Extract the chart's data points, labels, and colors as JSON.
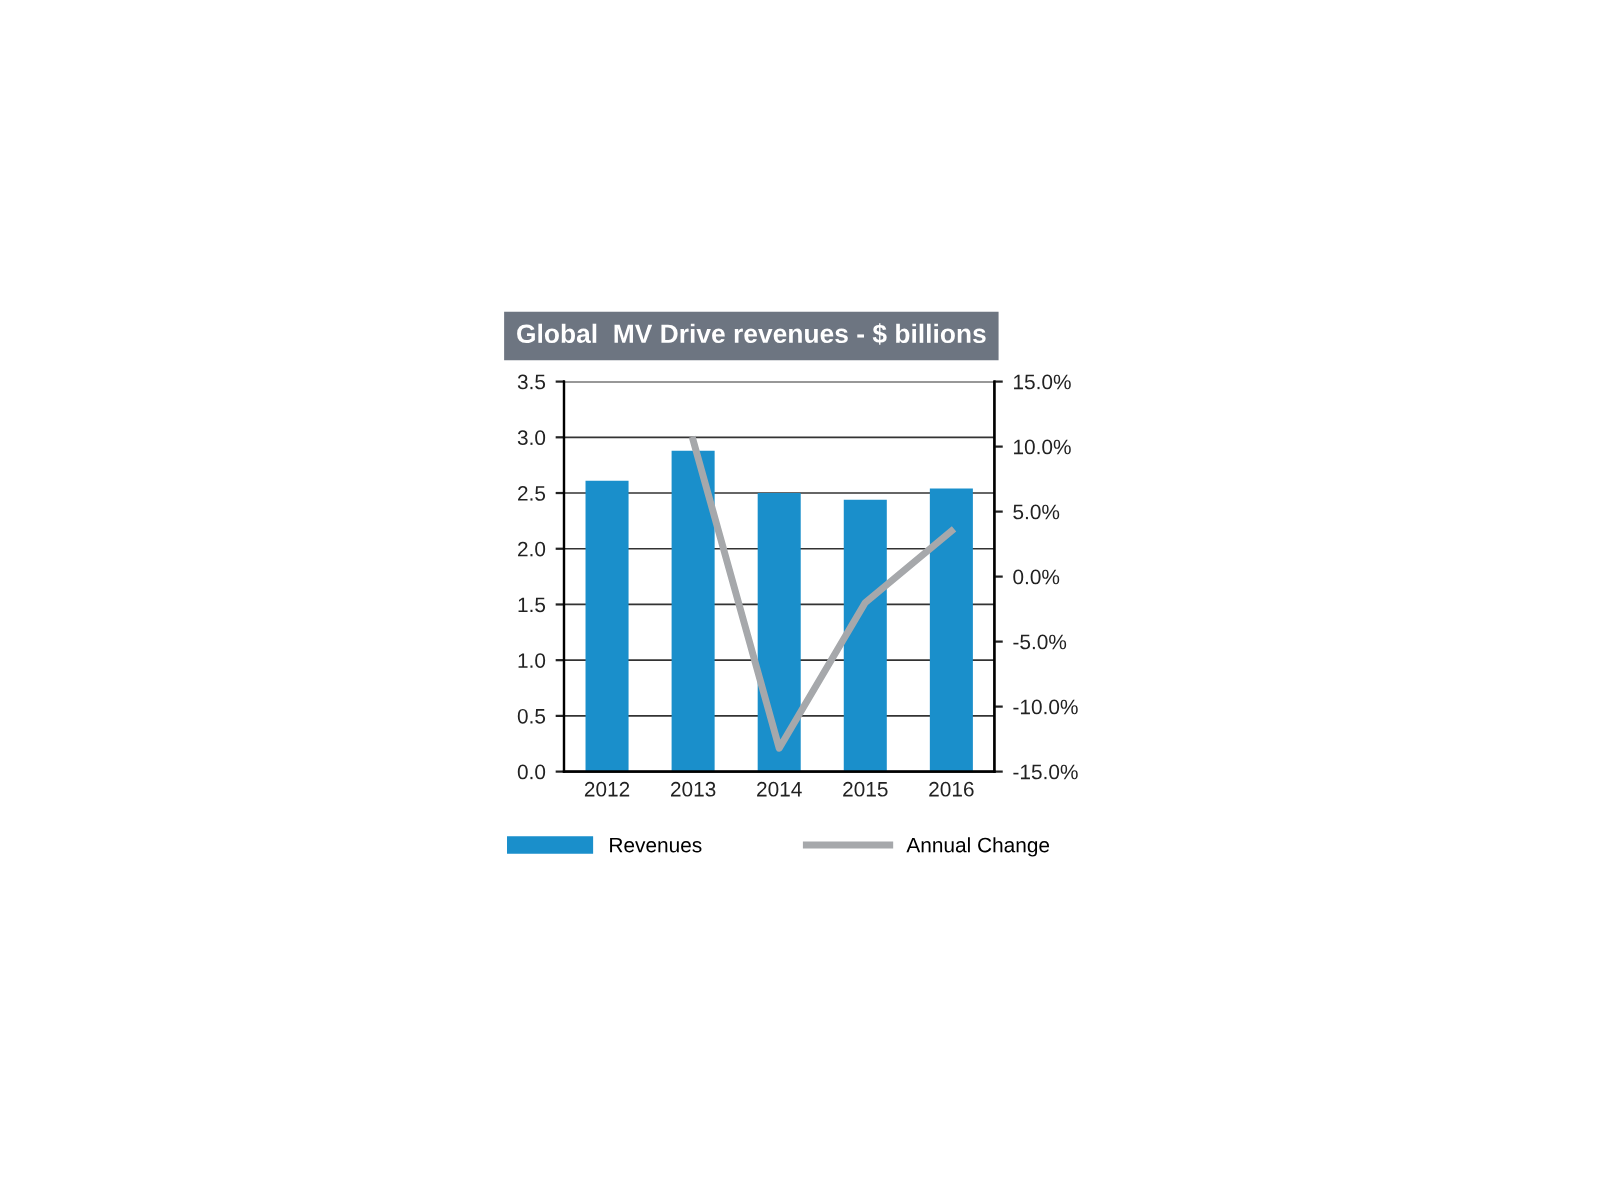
{
  "chart_data": {
    "type": "bar",
    "title": "Global  MV Drive revenues - $ billions",
    "categories": [
      "2012",
      "2013",
      "2014",
      "2015",
      "2016"
    ],
    "series": [
      {
        "name": "Revenues",
        "color": "#1a8fcb",
        "values": [
          2.61,
          2.88,
          2.5,
          2.44,
          2.54
        ]
      },
      {
        "name": "Annual Change",
        "type": "line",
        "axis": "y2",
        "color": "#a6a8ab",
        "values": [
          null,
          10.5,
          -13.2,
          -2.0,
          3.5
        ]
      }
    ],
    "ylim": [
      0,
      3.5
    ],
    "yticks": [
      {
        "value": 0,
        "label": "0.0"
      },
      {
        "value": 0.5,
        "label": "0.5"
      },
      {
        "value": 1,
        "label": "1.0"
      },
      {
        "value": 1.5,
        "label": "1.5"
      },
      {
        "value": 2,
        "label": "2.0"
      },
      {
        "value": 2.5,
        "label": "2.5"
      },
      {
        "value": 3,
        "label": "3.0"
      },
      {
        "value": 3.5,
        "label": "3.5"
      }
    ],
    "y2lim": [
      -15,
      15
    ],
    "y2ticks": [
      {
        "value": -15,
        "label": "-15.0%"
      },
      {
        "value": -10,
        "label": "-10.0%"
      },
      {
        "value": -5,
        "label": "-5.0%"
      },
      {
        "value": 0,
        "label": "0.0%"
      },
      {
        "value": 5,
        "label": "5.0%"
      },
      {
        "value": 10,
        "label": "10.0%"
      },
      {
        "value": 15,
        "label": "15.0%"
      }
    ],
    "grid": "y",
    "legend": "bottom",
    "marker": "none",
    "line_style": "solid"
  }
}
